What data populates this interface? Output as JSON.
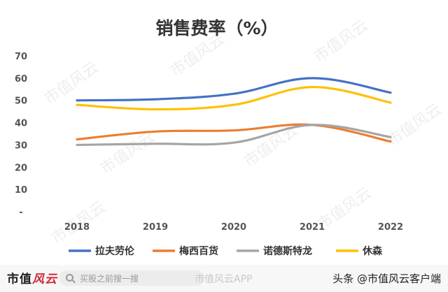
{
  "chart_data": {
    "type": "line",
    "title": "销售费率（%）",
    "categories": [
      "2018",
      "2019",
      "2020",
      "2021",
      "2022"
    ],
    "yticks": [
      "70",
      "60",
      "50",
      "40",
      "30",
      "20",
      "10",
      "-"
    ],
    "ylim": [
      0,
      70
    ],
    "grid": false,
    "legend_position": "bottom",
    "series": [
      {
        "name": "拉夫劳伦",
        "color": "#4472c4",
        "values": [
          50,
          50.5,
          53,
          60,
          53.5
        ]
      },
      {
        "name": "梅西百货",
        "color": "#ed7d31",
        "values": [
          32.5,
          36,
          36.5,
          39,
          31.5
        ]
      },
      {
        "name": "诺德斯特龙",
        "color": "#a5a5a5",
        "values": [
          30,
          30.5,
          31,
          39,
          33.5
        ]
      },
      {
        "name": "休森",
        "color": "#ffc000",
        "values": [
          48,
          46,
          48,
          56,
          49
        ]
      }
    ]
  },
  "watermark": "市值风云",
  "footer": {
    "brand_main": "市值",
    "brand_accent": "风云",
    "search_placeholder": "买股之前搜一搜",
    "app_watermark": "市值风云APP",
    "credit": "头条 @市值风云客户端"
  }
}
